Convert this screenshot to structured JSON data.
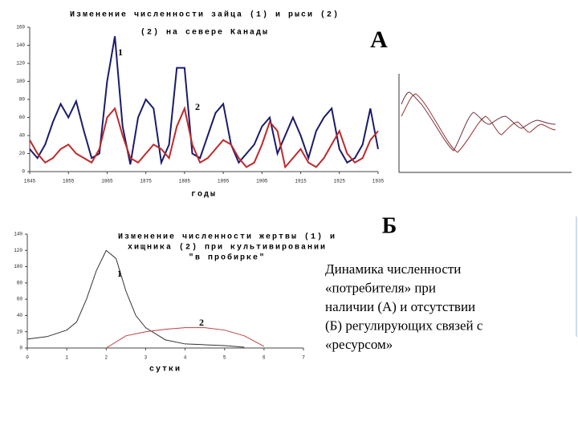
{
  "chart_data": [
    {
      "type": "line",
      "title": [
        "Изменение численности зайца (1) и рыси (2)",
        "(2) на севере Канады"
      ],
      "xlabel": "годы",
      "xlim": [
        1845,
        1935
      ],
      "xticks": [
        1845,
        1855,
        1865,
        1875,
        1885,
        1895,
        1905,
        1915,
        1925,
        1935
      ],
      "ylim": [
        0,
        160
      ],
      "yticks": [
        0,
        20,
        40,
        60,
        80,
        100,
        120,
        140,
        160
      ],
      "annotations": [
        "1",
        "2"
      ],
      "x": [
        1845,
        1847,
        1849,
        1851,
        1853,
        1855,
        1857,
        1859,
        1861,
        1863,
        1865,
        1867,
        1869,
        1871,
        1873,
        1875,
        1877,
        1879,
        1881,
        1883,
        1885,
        1887,
        1889,
        1891,
        1893,
        1895,
        1897,
        1899,
        1901,
        1903,
        1905,
        1907,
        1909,
        1911,
        1913,
        1915,
        1917,
        1919,
        1921,
        1923,
        1925,
        1927,
        1929,
        1931,
        1933,
        1935
      ],
      "series": [
        {
          "color": "#1b1b6a",
          "values": [
            25,
            15,
            30,
            55,
            75,
            60,
            78,
            45,
            15,
            20,
            100,
            150,
            50,
            8,
            60,
            80,
            70,
            10,
            30,
            115,
            115,
            20,
            15,
            40,
            65,
            75,
            30,
            10,
            20,
            30,
            50,
            60,
            20,
            40,
            60,
            40,
            15,
            45,
            60,
            70,
            25,
            10,
            15,
            30,
            70,
            25
          ]
        },
        {
          "color": "#c0282a",
          "values": [
            35,
            20,
            10,
            15,
            25,
            30,
            20,
            15,
            10,
            25,
            60,
            70,
            40,
            15,
            10,
            20,
            30,
            25,
            15,
            50,
            70,
            30,
            10,
            15,
            25,
            35,
            30,
            15,
            5,
            10,
            30,
            55,
            45,
            5,
            15,
            25,
            10,
            5,
            15,
            30,
            45,
            20,
            10,
            15,
            35,
            45
          ]
        }
      ]
    },
    {
      "type": "line",
      "title": [
        "Изменение численности жертвы (1) и",
        "хищника (2) при культивировании",
        "\"в пробирке\""
      ],
      "xlabel": "сутки",
      "xlim": [
        0,
        7
      ],
      "xticks": [
        0,
        1,
        2,
        3,
        4,
        5,
        6,
        7
      ],
      "ylim": [
        0,
        140
      ],
      "yticks": [
        0,
        20,
        40,
        60,
        80,
        100,
        120,
        140
      ],
      "annotations": [
        "1",
        "2"
      ],
      "series": [
        {
          "color": "#333333",
          "x": [
            0,
            0.5,
            1,
            1.25,
            1.5,
            1.75,
            2,
            2.25,
            2.5,
            2.75,
            3,
            3.5,
            4,
            4.5,
            5,
            5.5
          ],
          "values": [
            11,
            14,
            22,
            32,
            60,
            95,
            120,
            110,
            70,
            40,
            25,
            10,
            5,
            4,
            3,
            1
          ]
        },
        {
          "color": "#c04040",
          "x": [
            2,
            2.5,
            3,
            3.5,
            4,
            4.5,
            5,
            5.5,
            6
          ],
          "values": [
            0,
            15,
            20,
            23,
            25,
            25,
            22,
            15,
            2
          ]
        }
      ]
    }
  ],
  "labels": {
    "a": "А",
    "b": "Б"
  },
  "caption": [
    "Динамика численности",
    "«потребителя» при",
    "наличии (А) и отсутствии",
    "(Б) регулирующих  связей с",
    "«ресурсом»"
  ]
}
